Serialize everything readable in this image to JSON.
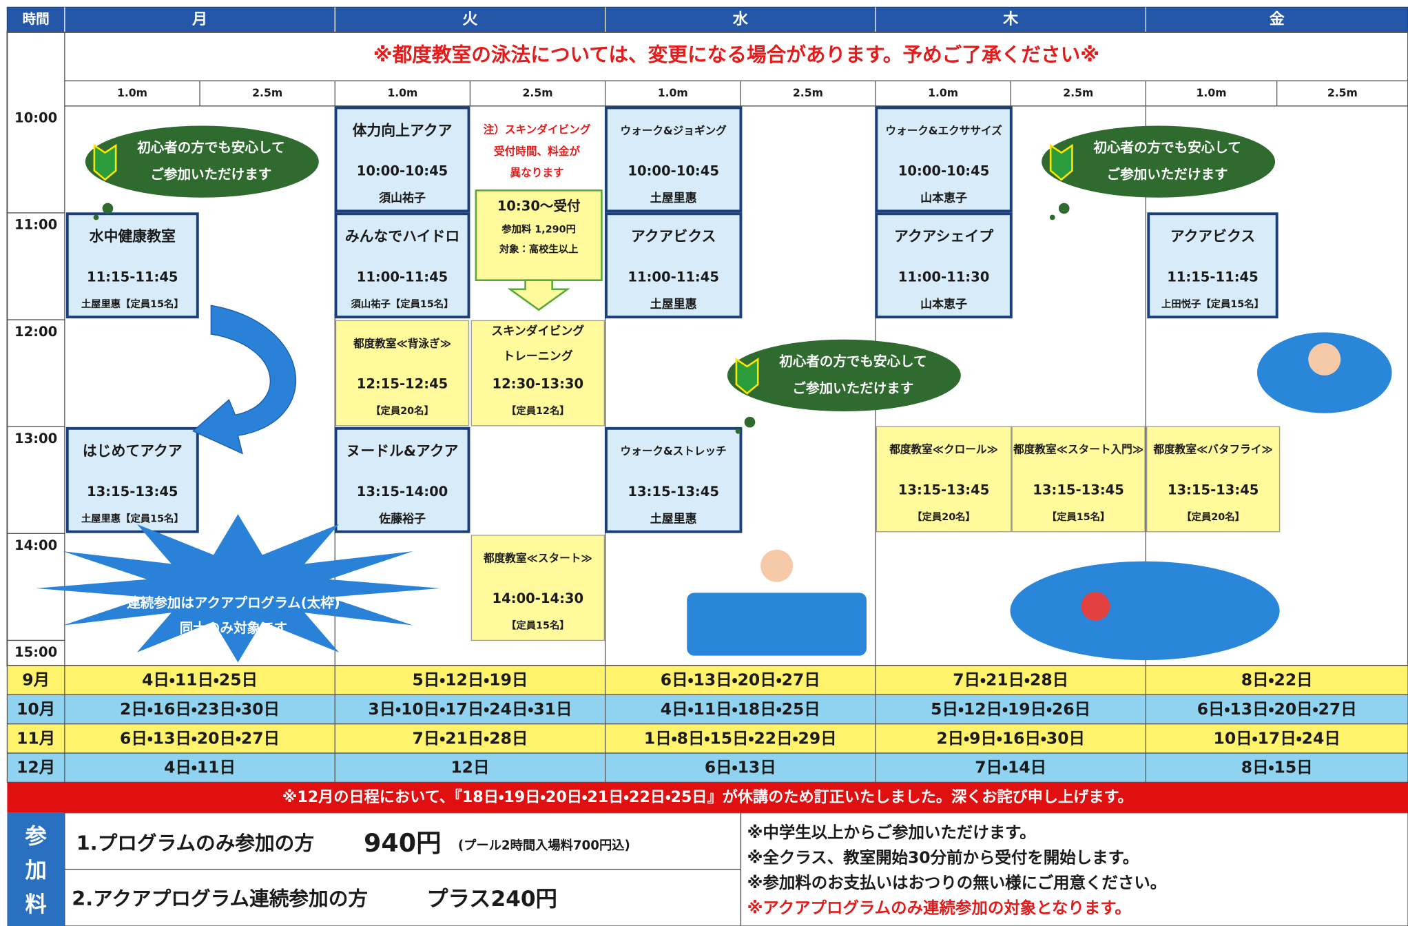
{
  "header": {
    "time_label": "時間",
    "days": [
      "月",
      "火",
      "水",
      "木",
      "金"
    ]
  },
  "notice": "※都度教室の泳法については、変更になる場合があります。予めご了承ください※",
  "lanes": [
    "1.0m",
    "2.5m"
  ],
  "times": [
    "10:00",
    "11:00",
    "12:00",
    "13:00",
    "14:00",
    "15:00"
  ],
  "classes": [
    {
      "name": "体力向上アクア",
      "time": "10:00-10:45",
      "info": "須山祐子"
    },
    {
      "name": "ウォーク&ジョギング",
      "time": "10:00-10:45",
      "info": "土屋里惠"
    },
    {
      "name": "ウォーク&エクササイズ",
      "time": "10:00-10:45",
      "info": "山本恵子"
    },
    {
      "name": "水中健康教室",
      "time": "11:15-11:45",
      "info": "土屋里惠【定員15名】"
    },
    {
      "name": "みんなでハイドロ",
      "time": "11:00-11:45",
      "info": "須山祐子【定員15名】"
    },
    {
      "name": "アクアビクス",
      "time": "11:00-11:45",
      "info": "土屋里惠"
    },
    {
      "name": "アクアシェイプ",
      "time": "11:00-11:30",
      "info": "山本恵子"
    },
    {
      "name": "アクアビクス",
      "time": "11:15-11:45",
      "info": "上田悦子【定員15名】"
    },
    {
      "name": "都度教室≪背泳ぎ≫",
      "time": "12:15-12:45",
      "info": "【定員20名】"
    },
    {
      "name": "スキンダイビング",
      "name2": "トレーニング",
      "time": "12:30-13:30",
      "info": "【定員12名】"
    },
    {
      "name": "はじめてアクア",
      "time": "13:15-13:45",
      "info": "土屋里惠【定員15名】"
    },
    {
      "name": "ヌードル&アクア",
      "time": "13:15-14:00",
      "info": "佐藤裕子"
    },
    {
      "name": "ウォーク&ストレッチ",
      "time": "13:15-13:45",
      "info": "土屋里惠"
    },
    {
      "name": "都度教室≪クロール≫",
      "time": "13:15-13:45",
      "info": "【定員20名】"
    },
    {
      "name": "都度教室≪スタート入門≫",
      "time": "13:15-13:45",
      "info": "【定員15名】"
    },
    {
      "name": "都度教室≪バタフライ≫",
      "time": "13:15-13:45",
      "info": "【定員20名】"
    },
    {
      "name": "都度教室≪スタート≫",
      "time": "14:00-14:30",
      "info": "【定員15名】"
    }
  ],
  "skin_note": {
    "lines": [
      "注）スキンダイビング",
      "受付時間、料金が",
      "異なります"
    ],
    "reception": "10:30～受付",
    "fee": "参加料 1,290円",
    "target": "対象：高校生以上"
  },
  "bubble": [
    "初心者の方でも安心して",
    "ご参加いただけます"
  ],
  "burst": [
    "連続参加はアクアプログラム(太枠)",
    "同士のみ対象です"
  ],
  "months": [
    {
      "month": "9月",
      "dates": [
        "4日・11日・25日",
        "5日・12日・19日",
        "6日・13日・20日・27日",
        "7日・21日・28日",
        "8日・22日"
      ]
    },
    {
      "month": "10月",
      "dates": [
        "2日・16日・23日・30日",
        "3日・10日・17日・24日・31日",
        "4日・11日・18日・25日",
        "5日・12日・19日・26日",
        "6日・13日・20日・27日"
      ]
    },
    {
      "month": "11月",
      "dates": [
        "6日・13日・20日・27日",
        "7日・21日・28日",
        "1日・8日・15日・22日・29日",
        "2日・9日・16日・30日",
        "10日・17日・24日"
      ]
    },
    {
      "month": "12月",
      "dates": [
        "4日・11日",
        "12日",
        "6日・13日",
        "7日・14日",
        "8日・15日"
      ]
    }
  ],
  "banner": "※12月の日程において、『18日・19日・20日・21日・22日・25日』が休講のため訂正いたしました。深くお詫び申し上げます。",
  "fee": {
    "label": [
      "参",
      "加",
      "料"
    ],
    "items": [
      {
        "text": "1.プログラムのみ参加の方",
        "price": "940円",
        "note": "(プール2時間入場料700円込)"
      },
      {
        "text": "2.アクアプログラム連続参加の方",
        "price": "プラス240円"
      }
    ],
    "notes": [
      "※中学生以上からご参加いただけます。",
      "※全クラス、教室開始30分前から受付を開始します。",
      "※参加料のお支払いはおつりの無い様にご用意ください。",
      "※アクアプログラムのみ連続参加の対象となります。"
    ]
  }
}
